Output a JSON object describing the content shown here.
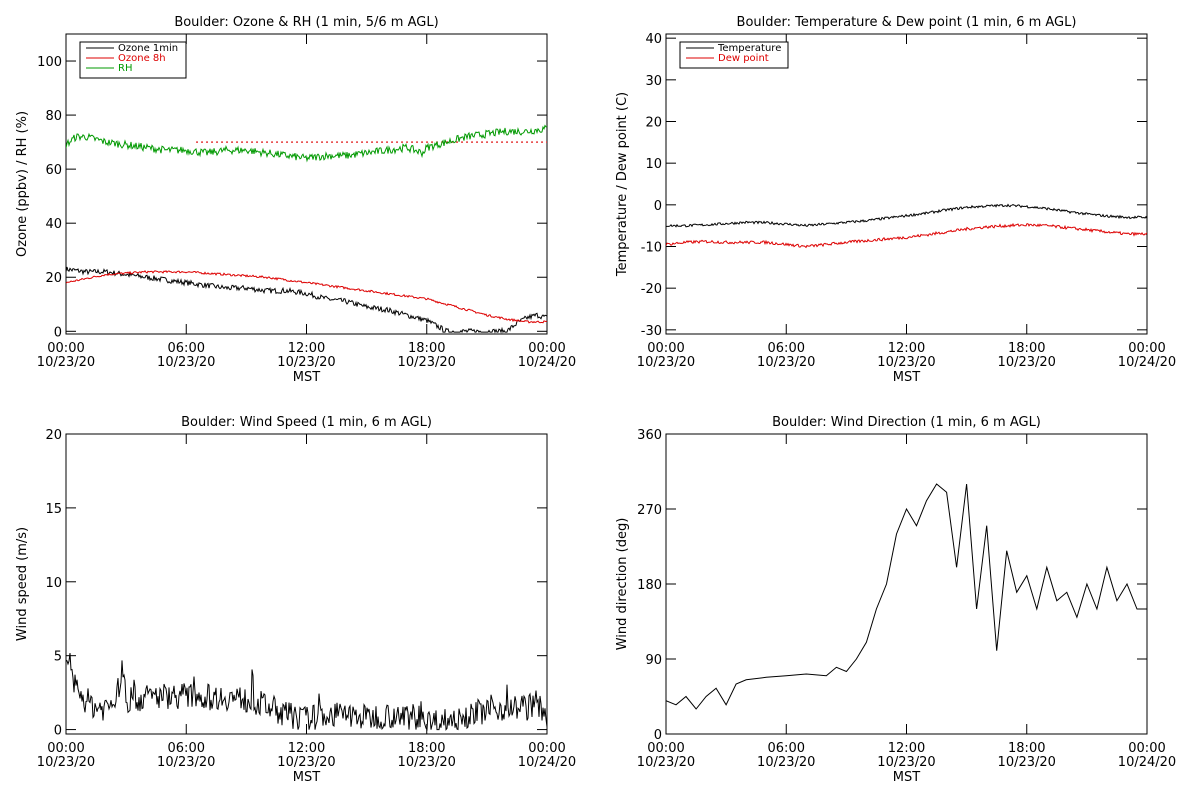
{
  "x_ticks": [
    {
      "hour": 0,
      "time": "00:00",
      "date": "10/23/20"
    },
    {
      "hour": 6,
      "time": "06:00",
      "date": "10/23/20"
    },
    {
      "hour": 12,
      "time": "12:00",
      "date": "10/23/20"
    },
    {
      "hour": 18,
      "time": "18:00",
      "date": "10/23/20"
    },
    {
      "hour": 24,
      "time": "00:00",
      "date": "10/24/20"
    }
  ],
  "xlabel": "MST",
  "chart_data": [
    {
      "type": "line",
      "title": "Boulder: Ozone & RH (1 min, 5/6 m AGL)",
      "ylabel": "Ozone (ppbv) / RH (%)",
      "xlim": [
        0,
        24
      ],
      "ylim": [
        -1,
        110
      ],
      "yticks": [
        0,
        20,
        40,
        60,
        80,
        100
      ],
      "grid": false,
      "legend": "top-left",
      "series": [
        {
          "name": "Ozone 1min",
          "color": "#000000",
          "x": [
            0,
            1,
            2,
            3,
            4,
            5,
            6,
            7,
            8,
            9,
            10,
            11,
            12,
            13,
            14,
            15,
            16,
            17,
            18,
            18.5,
            19,
            20,
            21,
            22,
            22.5,
            23,
            23.5,
            24
          ],
          "values": [
            23,
            22,
            22,
            21,
            20,
            19,
            18,
            17,
            16,
            16,
            15,
            15,
            14,
            12,
            11,
            9,
            8,
            6,
            4,
            2,
            0,
            0,
            0,
            0,
            3,
            5,
            6,
            5
          ]
        },
        {
          "name": "Ozone 8h",
          "color": "#dd0000",
          "x": [
            0,
            2,
            4,
            6,
            8,
            10,
            12,
            14,
            16,
            18,
            19,
            20,
            21,
            22,
            23,
            24
          ],
          "values": [
            18,
            21,
            22,
            22,
            21,
            20,
            18,
            16,
            14,
            12,
            10,
            8,
            6,
            4.5,
            3.5,
            3.5
          ]
        },
        {
          "name": "RH",
          "color": "#009900",
          "x": [
            0,
            0.5,
            1,
            2,
            3,
            4,
            5,
            6,
            7,
            8,
            9,
            10,
            11,
            12,
            13,
            14,
            15,
            16,
            17,
            17.8,
            18,
            18.5,
            19,
            20,
            21,
            22,
            23,
            24
          ],
          "values": [
            69,
            72,
            72,
            70,
            69,
            68,
            67,
            67,
            66,
            67,
            67,
            66,
            65,
            64,
            65,
            65,
            66,
            67,
            68,
            66,
            68,
            69,
            70,
            72,
            73,
            74,
            74,
            75
          ]
        }
      ],
      "reference_line": {
        "value": 70,
        "x_start": 6.5,
        "x_end": 24,
        "color": "#dd0000",
        "style": "dotted"
      }
    },
    {
      "type": "line",
      "title": "Boulder: Temperature & Dew point (1 min, 6 m AGL)",
      "ylabel": "Temperature / Dew point (C)",
      "xlim": [
        0,
        24
      ],
      "ylim": [
        -31,
        41
      ],
      "yticks": [
        -30,
        -20,
        -10,
        0,
        10,
        20,
        30,
        40
      ],
      "grid": false,
      "legend": "top-left",
      "series": [
        {
          "name": "Temperature",
          "color": "#000000",
          "x": [
            0,
            1,
            2,
            3,
            4,
            5,
            6,
            7,
            8,
            9,
            10,
            11,
            12,
            13,
            14,
            15,
            16,
            17,
            18,
            19,
            20,
            21,
            22,
            23,
            24
          ],
          "values": [
            -5,
            -5,
            -4.8,
            -4.5,
            -4.2,
            -4.3,
            -4.6,
            -5,
            -4.6,
            -4.2,
            -3.8,
            -3.2,
            -2.6,
            -2,
            -1.2,
            -0.6,
            -0.3,
            -0.1,
            -0.4,
            -0.9,
            -1.6,
            -2.2,
            -2.7,
            -3,
            -3
          ]
        },
        {
          "name": "Dew point",
          "color": "#dd0000",
          "x": [
            0,
            1,
            2,
            3,
            4,
            5,
            6,
            7,
            8,
            9,
            10,
            11,
            12,
            13,
            14,
            15,
            16,
            17,
            18,
            19,
            20,
            21,
            22,
            23,
            24
          ],
          "values": [
            -9.5,
            -9,
            -8.8,
            -9,
            -9,
            -9,
            -9.5,
            -10,
            -9.5,
            -9,
            -8.6,
            -8.2,
            -7.8,
            -7.2,
            -6.5,
            -5.8,
            -5.3,
            -5,
            -4.8,
            -5,
            -5.5,
            -6,
            -6.5,
            -7,
            -7
          ]
        }
      ]
    },
    {
      "type": "line",
      "title": "Boulder: Wind Speed (1 min, 6 m AGL)",
      "ylabel": "Wind speed (m/s)",
      "xlim": [
        0,
        24
      ],
      "ylim": [
        -0.3,
        20
      ],
      "yticks": [
        0,
        5,
        10,
        15,
        20
      ],
      "grid": false,
      "series": [
        {
          "color": "#000000",
          "x": [
            0,
            0.3,
            0.6,
            1,
            1.5,
            2,
            2.5,
            2.8,
            3,
            3.5,
            4,
            5,
            6,
            7,
            8,
            9,
            10,
            11,
            12,
            13,
            14,
            15,
            16,
            17,
            18,
            19,
            20,
            21,
            22,
            23,
            23.5,
            24
          ],
          "values": [
            4,
            3.5,
            2.5,
            2,
            1.5,
            1.5,
            2,
            4,
            2,
            2,
            2.2,
            2.3,
            2.3,
            2.2,
            2.2,
            2,
            1.6,
            1,
            0.7,
            1,
            1,
            0.8,
            1,
            0.8,
            0.5,
            0.6,
            1,
            1.3,
            1.5,
            1.5,
            1.8,
            1
          ]
        }
      ]
    },
    {
      "type": "line",
      "title": "Boulder: Wind Direction (1 min, 6 m AGL)",
      "ylabel": "Wind direction (deg)",
      "xlim": [
        0,
        24
      ],
      "ylim": [
        0,
        360
      ],
      "yticks": [
        0,
        90,
        180,
        270,
        360
      ],
      "grid": false,
      "series": [
        {
          "color": "#000000",
          "x": [
            0,
            0.5,
            1,
            1.5,
            2,
            2.5,
            3,
            3.5,
            4,
            5,
            6,
            7,
            8,
            8.5,
            9,
            9.5,
            10,
            10.5,
            11,
            11.5,
            12,
            12.5,
            13,
            13.5,
            14,
            14.5,
            15,
            15.5,
            16,
            16.5,
            17,
            17.5,
            18,
            18.5,
            19,
            19.5,
            20,
            20.5,
            21,
            21.5,
            22,
            22.5,
            23,
            23.5,
            24
          ],
          "values": [
            40,
            35,
            45,
            30,
            45,
            55,
            35,
            60,
            65,
            68,
            70,
            72,
            70,
            80,
            75,
            90,
            110,
            150,
            180,
            240,
            270,
            250,
            280,
            300,
            290,
            200,
            300,
            150,
            250,
            100,
            220,
            170,
            190,
            150,
            200,
            160,
            170,
            140,
            180,
            150,
            200,
            160,
            180,
            150,
            150
          ]
        }
      ]
    }
  ]
}
